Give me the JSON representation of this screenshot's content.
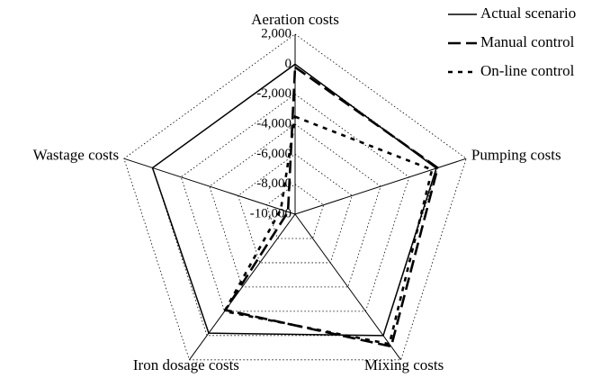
{
  "chart_data": {
    "type": "radar",
    "categories": [
      "Aeration costs",
      "Pumping costs",
      "Mixing costs",
      "Iron dosage costs",
      "Wastage costs"
    ],
    "series": [
      {
        "name": "Actual scenario",
        "color": "#000000",
        "dash": "solid",
        "values": [
          0,
          -100,
          0,
          -200,
          0
        ]
      },
      {
        "name": "Manual control",
        "color": "#000000",
        "dash": "long",
        "values": [
          -200,
          0,
          900,
          -2100,
          -9500
        ]
      },
      {
        "name": "On-line control",
        "color": "#000000",
        "dash": "short",
        "values": [
          -3500,
          -400,
          700,
          -2000,
          -9000
        ]
      }
    ],
    "rlim": [
      -10000,
      2000
    ],
    "rticks": [
      {
        "value": 2000,
        "label": "2,000"
      },
      0,
      {
        "value": -2000,
        "label": "-2,000"
      },
      {
        "value": -4000,
        "label": "-4,000"
      },
      {
        "value": -6000,
        "label": "-6,000"
      },
      {
        "value": -8000,
        "label": "-8,000"
      },
      {
        "value": -10000,
        "label": "-10,000"
      }
    ],
    "grid": true,
    "legend": "top-right"
  }
}
